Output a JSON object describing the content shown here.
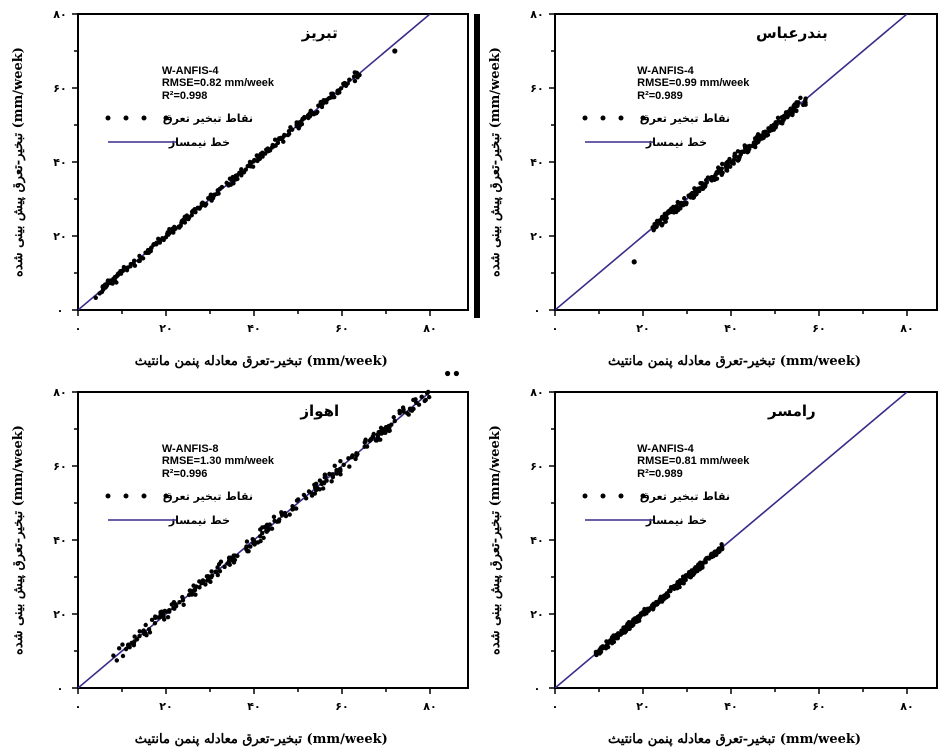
{
  "figure": {
    "x_axis_label": "تبخیر-تعرق معادله پنمن مانتیث (mm/week)",
    "y_axis_label": "تبخیر-تعرق پیش بینی شده (mm/week)",
    "legend_points": "نقاط تبخیر تعرق",
    "legend_line": "خط نیمساز",
    "tick_labels": [
      "۰",
      "۲۰",
      "۴۰",
      "۶۰",
      "۸۰"
    ],
    "point_color": "#000000",
    "line_color": "#3a2a8a"
  },
  "chart_data": [
    {
      "type": "scatter",
      "title": "تبریز",
      "model": "W-ANFIS-4",
      "rmse": "RMSE=0.82 mm/week",
      "r2": "R²=0.998",
      "xlim": [
        0,
        80
      ],
      "ylim": [
        0,
        80
      ],
      "xlabel": "تبخیر-تعرق معادله پنمن مانتیث (mm/week)",
      "ylabel": "تبخیر-تعرق پیش بینی شده (mm/week)",
      "range": [
        4,
        64
      ],
      "spread": 0.9,
      "outliers": [
        [
          72,
          70
        ]
      ],
      "seed": 11
    },
    {
      "type": "scatter",
      "title": "بندرعباس",
      "model": "W-ANFIS-4",
      "rmse": "RMSE=0.99 mm/week",
      "r2": "R²=0.989",
      "xlim": [
        0,
        80
      ],
      "ylim": [
        0,
        80
      ],
      "xlabel": "تبخیر-تعرق معادله پنمن مانتیث (mm/week)",
      "ylabel": "تبخیر-تعرق پیش بینی شده (mm/week)",
      "range": [
        22,
        57
      ],
      "spread": 1.1,
      "outliers": [
        [
          18,
          13
        ]
      ],
      "seed": 23
    },
    {
      "type": "scatter",
      "title": "اهواز",
      "model": "W-ANFIS-8",
      "rmse": "RMSE=1.30 mm/week",
      "r2": "R²=0.996",
      "xlim": [
        0,
        80
      ],
      "ylim": [
        0,
        80
      ],
      "xlabel": "تبخیر-تعرق معادله پنمن مانتیث (mm/week)",
      "ylabel": "تبخیر-تعرق پیش بینی شده (mm/week)",
      "range": [
        7,
        80
      ],
      "spread": 1.4,
      "outliers": [
        [
          84,
          85
        ],
        [
          86,
          85
        ]
      ],
      "seed": 37
    },
    {
      "type": "scatter",
      "title": "رامسر",
      "model": "W-ANFIS-4",
      "rmse": "RMSE=0.81 mm/week",
      "r2": "R²=0.989",
      "xlim": [
        0,
        80
      ],
      "ylim": [
        0,
        80
      ],
      "xlabel": "تبخیر-تعرق معادله پنمن مانتیث (mm/week)",
      "ylabel": "تبخیر-تعرق پیش بینی شده (mm/week)",
      "range": [
        9,
        38
      ],
      "spread": 0.8,
      "outliers": [],
      "seed": 53
    }
  ]
}
